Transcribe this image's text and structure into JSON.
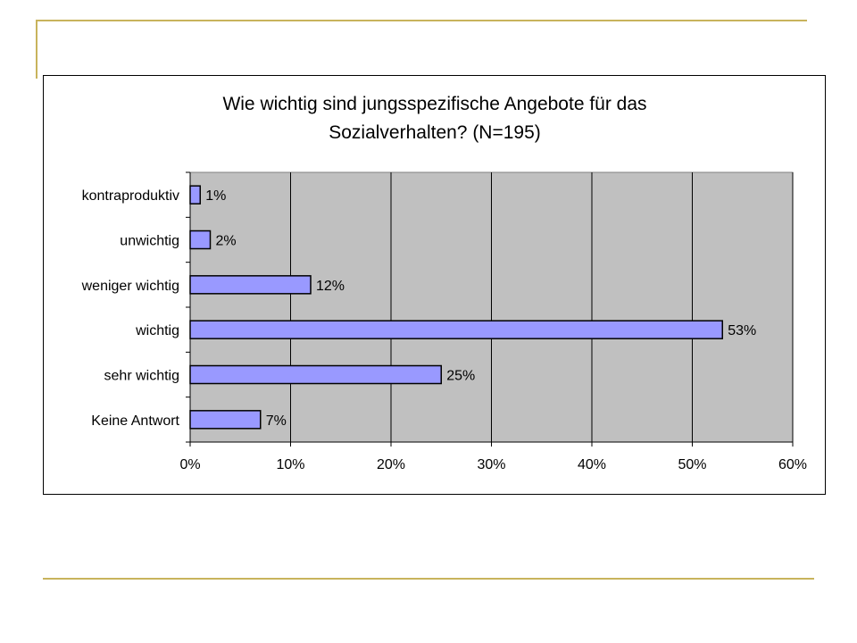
{
  "chart_data": {
    "type": "bar",
    "orientation": "horizontal",
    "title": "Wie wichtig sind jungsspezifische Angebote für das Sozialverhalten? (N=195)",
    "title_lines": [
      "Wie wichtig sind jungsspezifische Angebote für das",
      "Sozialverhalten? (N=195)"
    ],
    "categories": [
      "kontraproduktiv",
      "unwichtig",
      "weniger wichtig",
      "wichtig",
      "sehr wichtig",
      "Keine Antwort"
    ],
    "values": [
      1,
      2,
      12,
      53,
      25,
      7
    ],
    "value_labels": [
      "1%",
      "2%",
      "12%",
      "53%",
      "25%",
      "7%"
    ],
    "x_ticks": [
      "0%",
      "10%",
      "20%",
      "30%",
      "40%",
      "50%",
      "60%"
    ],
    "xlim": [
      0,
      60
    ],
    "xlabel": "",
    "ylabel": "",
    "grid": true,
    "legend": "none",
    "colors": {
      "bar_fill": "#9999ff",
      "bar_stroke": "#000000",
      "plot_background": "#c0c0c0",
      "gridline": "#000000",
      "decor_line": "#c8b35c"
    }
  }
}
